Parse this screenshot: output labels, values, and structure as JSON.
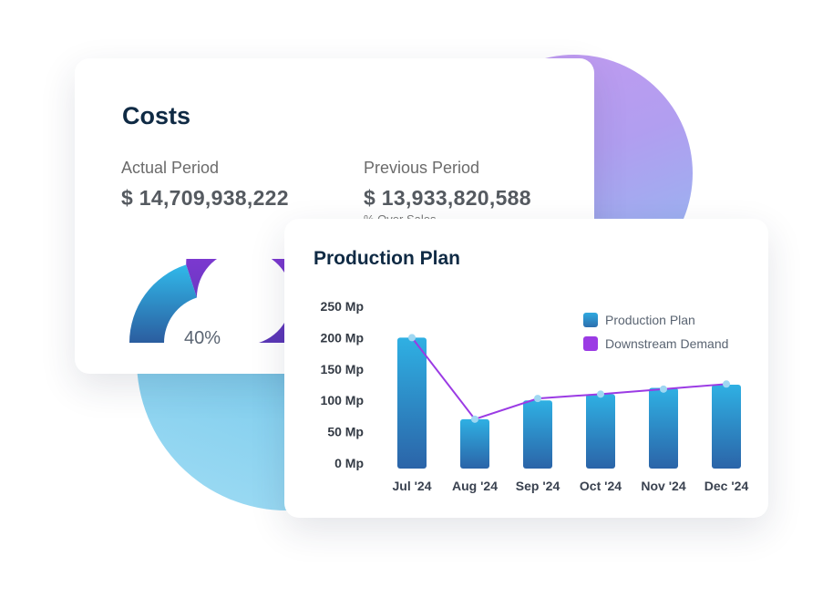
{
  "costs": {
    "title": "Costs",
    "actual_label": "Actual Period",
    "actual_value": "$ 14,709,938,222",
    "previous_label": "Previous Period",
    "previous_value": "$ 13,933,820,588",
    "previous_sub": "% Over Sales",
    "gauge": {
      "label": "40%",
      "value": 0.4,
      "color_fill": "#2fb5e6",
      "color_rest": "#8f35e0"
    }
  },
  "production_plan": {
    "title": "Production Plan",
    "legend": [
      "Production Plan",
      "Downstream Demand"
    ]
  },
  "colors": {
    "title": "#0f2a44",
    "bar_top": "#2fb0e3",
    "bar_bottom": "#2b64a8",
    "line": "#9b3be4",
    "point": "#9fd7f2"
  },
  "chart_data": {
    "type": "bar",
    "title": "Production Plan",
    "categories": [
      "Jul '24",
      "Aug '24",
      "Sep '24",
      "Oct '24",
      "Nov '24",
      "Dec '24"
    ],
    "y_ticks": [
      "0 Mp",
      "50 Mp",
      "100 Mp",
      "150 Mp",
      "200 Mp",
      "250 Mp"
    ],
    "ylim": [
      0,
      250
    ],
    "legend_position": "top-right",
    "series": [
      {
        "name": "Production Plan",
        "type": "bar",
        "values": [
          200,
          70,
          100,
          110,
          120,
          125
        ]
      },
      {
        "name": "Downstream Demand",
        "type": "line",
        "values": [
          200,
          70,
          103,
          110,
          118,
          126
        ]
      }
    ]
  }
}
